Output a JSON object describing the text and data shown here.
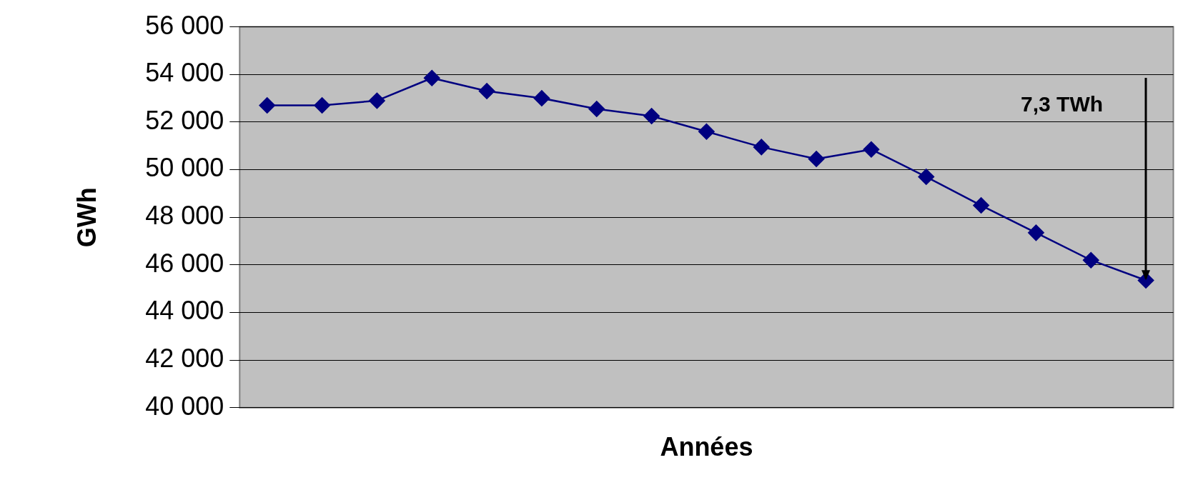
{
  "chart_data": {
    "type": "line",
    "xlabel": "Années",
    "ylabel": "GWh",
    "categories": [
      null,
      null,
      null,
      null,
      null,
      null,
      null,
      null,
      null,
      null,
      null,
      null,
      null,
      null,
      null,
      null,
      null
    ],
    "series": [
      {
        "color": "#000080",
        "values": [
          52700,
          52700,
          52900,
          53850,
          53300,
          53000,
          52550,
          52250,
          51600,
          50950,
          50450,
          50850,
          49700,
          48500,
          47350,
          46200,
          45350
        ]
      }
    ],
    "ylim": [
      40000,
      56000
    ],
    "yticks": [
      {
        "value": 40000,
        "label": "40 000"
      },
      {
        "value": 42000,
        "label": "42 000"
      },
      {
        "value": 44000,
        "label": "44 000"
      },
      {
        "value": 46000,
        "label": "46 000"
      },
      {
        "value": 48000,
        "label": "48 000"
      },
      {
        "value": 50000,
        "label": "50 000"
      },
      {
        "value": 52000,
        "label": "52 000"
      },
      {
        "value": 54000,
        "label": "54 000"
      },
      {
        "value": 56000,
        "label": "56 000"
      }
    ],
    "grid": "y",
    "marker": "diamond",
    "line_style": "solid",
    "legend": false,
    "tick_labels": "y",
    "annotations": [
      "7,3 TWh"
    ]
  }
}
